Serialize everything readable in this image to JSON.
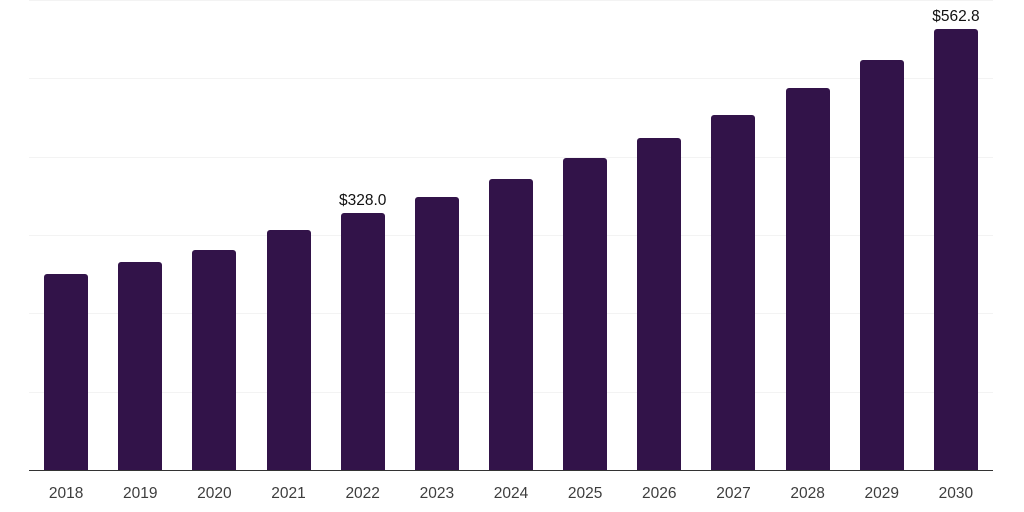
{
  "chart_data": {
    "type": "bar",
    "title": "",
    "xlabel": "",
    "ylabel": "",
    "categories": [
      "2018",
      "2019",
      "2020",
      "2021",
      "2022",
      "2023",
      "2024",
      "2025",
      "2026",
      "2027",
      "2028",
      "2029",
      "2030"
    ],
    "values": [
      250.4,
      265.6,
      281.5,
      305.9,
      328.0,
      349.1,
      371.6,
      398.0,
      423.8,
      453.5,
      487.1,
      523.5,
      562.8
    ],
    "data_labels": [
      {
        "category": "2022",
        "text": "$328.0"
      },
      {
        "category": "2030",
        "text": "$562.8"
      }
    ],
    "ylim": [
      0,
      600
    ],
    "gridline_step": 100,
    "grid": "horizontal-only",
    "legend": "none",
    "colors": {
      "bar": "#321349",
      "gridline": "#f3f3f3",
      "axis_line": "#333333",
      "tick_label": "#3d3d3d",
      "data_label": "#111111",
      "background": "#ffffff"
    }
  }
}
